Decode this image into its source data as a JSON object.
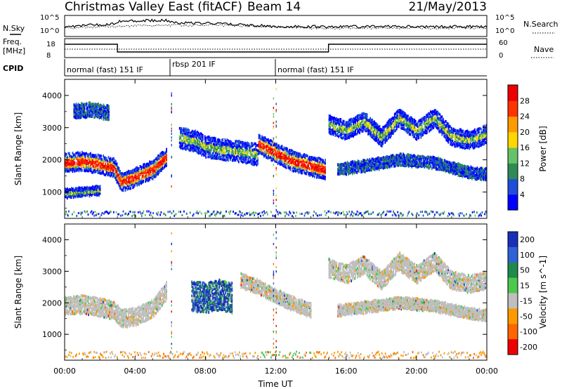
{
  "header": {
    "title": "Christmas Valley East (fitACF)",
    "beam": "Beam 14",
    "date": "21/May/2013"
  },
  "top_panels": {
    "nsky_label": "N.Sky",
    "nsky_ticks": [
      "10^5",
      "10^0"
    ],
    "nsearch_label": "N.Search",
    "nsearch_ticks": [
      "10^5",
      "10^0"
    ],
    "freq_label_1": "Freq.",
    "freq_label_2": "[MHz]",
    "freq_ticks": [
      "18",
      "8"
    ],
    "nave_label": "Nave",
    "nave_ticks": [
      "60",
      "0"
    ],
    "cpid_label": "CPID",
    "cpid_segments": [
      {
        "label": "normal (fast) 151 IF",
        "start_hour": 0,
        "end_hour": 6
      },
      {
        "label": "rbsp 201 IF",
        "start_hour": 6,
        "end_hour": 12
      },
      {
        "label": "normal (fast) 151 IF",
        "start_hour": 12,
        "end_hour": 24
      }
    ],
    "frequency_steps": [
      {
        "start_hour": 0,
        "end_hour": 3,
        "freq_level": "high"
      },
      {
        "start_hour": 3,
        "end_hour": 15,
        "freq_level": "low"
      },
      {
        "start_hour": 15,
        "end_hour": 24,
        "freq_level": "high"
      }
    ]
  },
  "chart_data": [
    {
      "type": "heatmap",
      "name": "Power panel",
      "ylabel": "Slant Range [km]",
      "yticks": [
        "1000",
        "2000",
        "3000",
        "4000"
      ],
      "ylim": [
        180,
        4500
      ],
      "xlim": [
        0,
        24
      ],
      "colorbar_label": "Power [dB]",
      "colorbar_ticks": [
        "4",
        "8",
        "12",
        "16",
        "20",
        "24",
        "28"
      ],
      "colorbar_colors": [
        "#0000ff",
        "#1f4fd8",
        "#2e8b57",
        "#66c266",
        "#ffd700",
        "#ff9900",
        "#ff3300",
        "#ee0000"
      ],
      "bands": [
        {
          "t": [
            0,
            1,
            2,
            2.8,
            3.2,
            4,
            5,
            5.8
          ],
          "r": [
            1900,
            1950,
            1850,
            1750,
            1300,
            1450,
            1700,
            2100
          ],
          "width": 260,
          "intensity": "high"
        },
        {
          "t": [
            6.5,
            7.5,
            8,
            9,
            10,
            11
          ],
          "r": [
            2700,
            2550,
            2400,
            2300,
            2250,
            2150
          ],
          "width": 300,
          "intensity": "medium"
        },
        {
          "t": [
            11,
            12,
            13,
            14,
            14.8
          ],
          "r": [
            2500,
            2200,
            1950,
            1800,
            1700
          ],
          "width": 280,
          "intensity": "high"
        },
        {
          "t": [
            15,
            16,
            17,
            18,
            19,
            20,
            21,
            22,
            23,
            24
          ],
          "r": [
            3100,
            2900,
            3200,
            2700,
            3300,
            2900,
            3300,
            2700,
            2600,
            2800
          ],
          "width": 260,
          "intensity": "medium"
        },
        {
          "t": [
            15.5,
            17,
            19,
            21,
            23,
            24
          ],
          "r": [
            1700,
            1800,
            2000,
            1900,
            1600,
            1550
          ],
          "width": 160,
          "intensity": "low"
        },
        {
          "t": [
            0.5,
            1.5,
            2.5
          ],
          "r": [
            3500,
            3550,
            3450
          ],
          "width": 200,
          "intensity": "low"
        },
        {
          "t": [
            0,
            1,
            2
          ],
          "r": [
            950,
            1000,
            1050
          ],
          "width": 120,
          "intensity": "medium"
        }
      ]
    },
    {
      "type": "heatmap",
      "name": "Velocity panel",
      "ylabel": "Slant Range [km]",
      "yticks": [
        "1000",
        "2000",
        "3000",
        "4000"
      ],
      "ylim": [
        180,
        4500
      ],
      "xlim": [
        0,
        24
      ],
      "xticks": [
        "00:00",
        "04:00",
        "08:00",
        "12:00",
        "16:00",
        "20:00",
        "00:00"
      ],
      "xlabel": "Time UT",
      "colorbar_label": "Velocity [m s^-1]",
      "colorbar_ticks": [
        "200",
        "100",
        "50",
        "15",
        "-15",
        "-50",
        "-100",
        "-200"
      ],
      "colorbar_colors": [
        "#1a2fb8",
        "#2f62d8",
        "#1f8a4c",
        "#4cc84c",
        "#bfbfbf",
        "#ff9900",
        "#ff6600",
        "#ee0000"
      ],
      "bands": [
        {
          "t": [
            0,
            1,
            2,
            2.8,
            3.2,
            4,
            5,
            5.8
          ],
          "r": [
            1900,
            1950,
            1850,
            1750,
            1500,
            1550,
            1800,
            2400
          ],
          "width": 260,
          "vel": "ground"
        },
        {
          "t": [
            7.2,
            8,
            8.8,
            9.5
          ],
          "r": [
            2200,
            2150,
            2250,
            2150
          ],
          "width": 450,
          "vel": "positive"
        },
        {
          "t": [
            10,
            11,
            12,
            13,
            14
          ],
          "r": [
            2700,
            2500,
            2200,
            1950,
            1750
          ],
          "width": 200,
          "vel": "ground"
        },
        {
          "t": [
            15,
            16,
            17,
            18,
            19,
            20,
            21,
            22,
            23,
            24
          ],
          "r": [
            3100,
            2900,
            3200,
            2700,
            3300,
            2900,
            3300,
            2700,
            2600,
            2700
          ],
          "width": 260,
          "vel": "ground"
        },
        {
          "t": [
            15.5,
            17,
            19,
            21,
            23,
            24
          ],
          "r": [
            1750,
            1850,
            2000,
            1900,
            1650,
            1600
          ],
          "width": 160,
          "vel": "ground"
        }
      ]
    }
  ]
}
